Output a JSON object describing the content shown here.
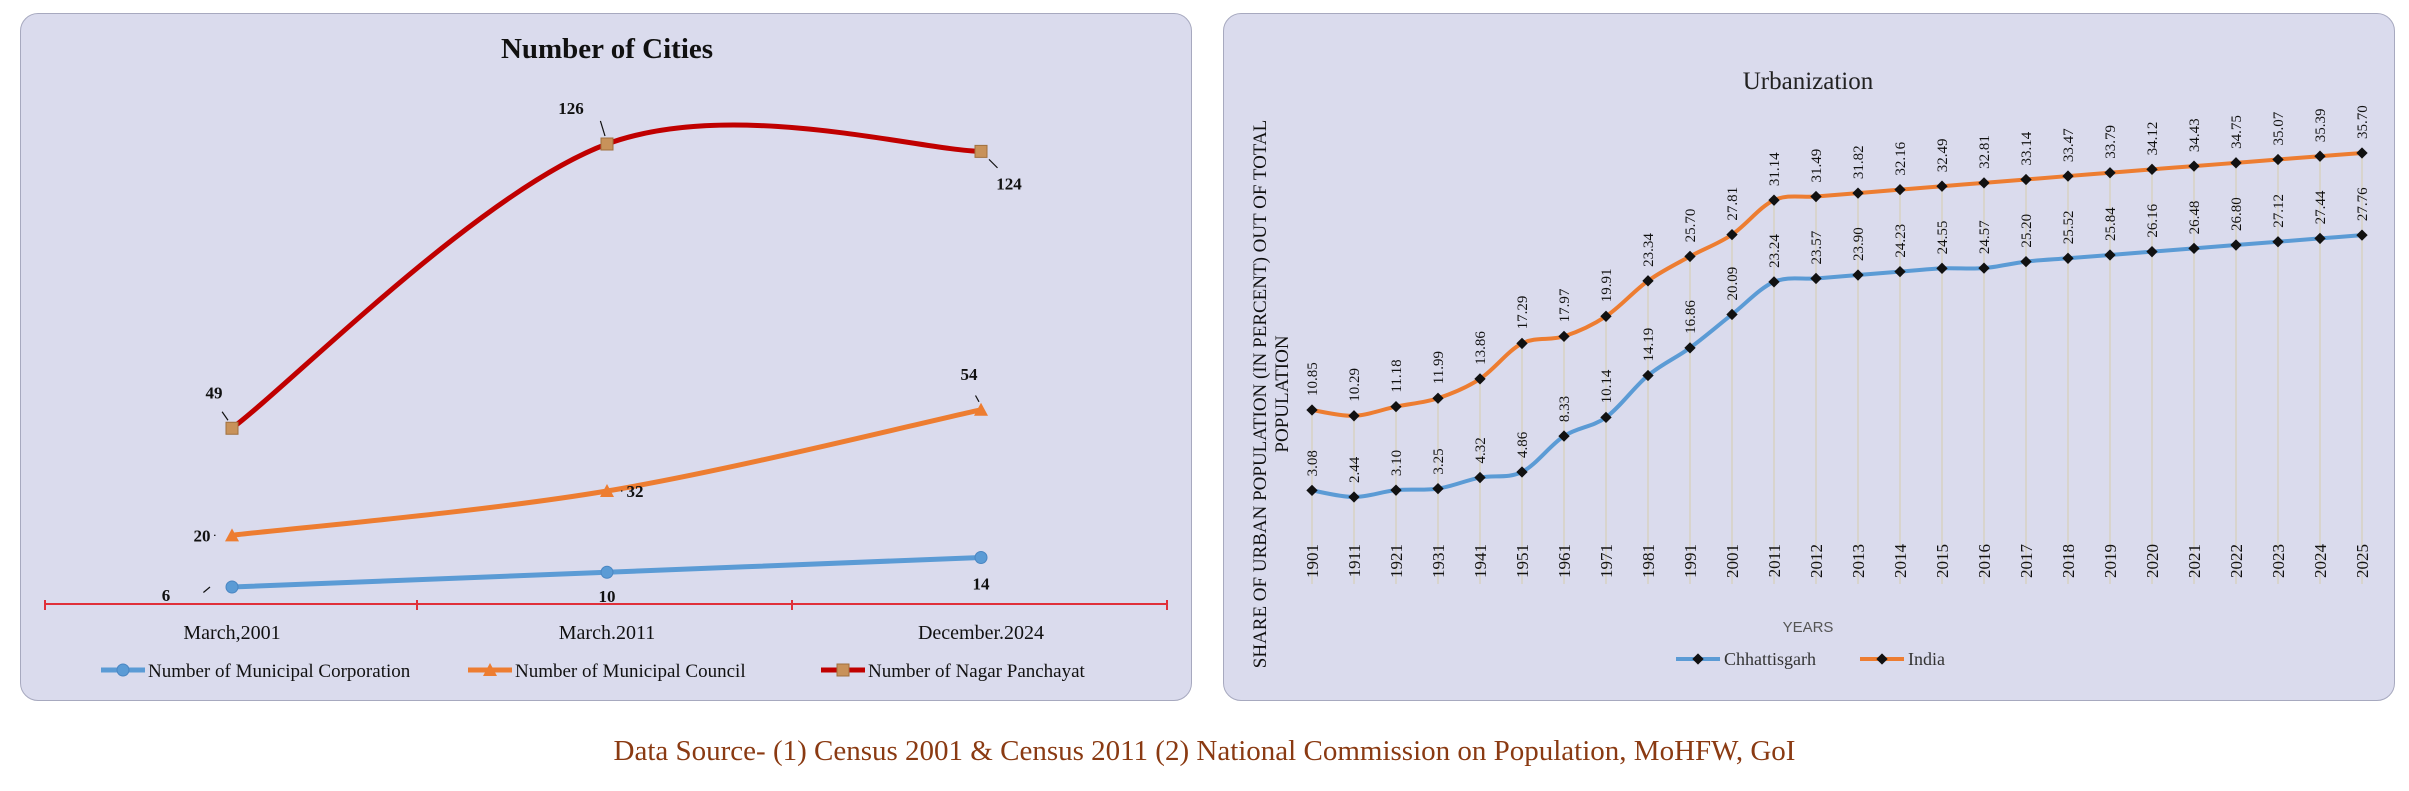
{
  "chart_data": [
    {
      "type": "line",
      "title": "Number of Cities",
      "categories": [
        "March,2001",
        "March.2011",
        "December.2024"
      ],
      "series": [
        {
          "name": "Number of Municipal Corporation",
          "values": [
            6,
            10,
            14
          ],
          "color": "#5b9bd5",
          "marker": "circle"
        },
        {
          "name": "Number of Municipal Council",
          "values": [
            20,
            32,
            54
          ],
          "color": "#ed7d31",
          "marker": "triangle"
        },
        {
          "name": "Number of Nagar Panchayat",
          "values": [
            49,
            126,
            124
          ],
          "color": "#c00000",
          "marker": "square"
        }
      ],
      "ylim": [
        0,
        140
      ],
      "smooth": true,
      "legend": "bottom",
      "grid": false
    },
    {
      "type": "line",
      "title": "Urbanization",
      "xlabel": "YEARS",
      "ylabel": "SHARE OF URBAN POPULATION (IN PERCENT) OUT OF TOTAL POPULATION",
      "categories": [
        "1901",
        "1911",
        "1921",
        "1931",
        "1941",
        "1951",
        "1961",
        "1971",
        "1981",
        "1991",
        "2001",
        "2011",
        "2012",
        "2013",
        "2014",
        "2015",
        "2016",
        "2017",
        "2018",
        "2019",
        "2020",
        "2021",
        "2022",
        "2023",
        "2024",
        "2025"
      ],
      "series": [
        {
          "name": "Chhattisgarh",
          "values": [
            "3.08",
            "2.44",
            "3.10",
            "3.25",
            "4.32",
            "4.86",
            "8.33",
            "10.14",
            "14.19",
            "16.86",
            "20.09",
            "23.24",
            "23.57",
            "23.90",
            "24.23",
            "24.55",
            "24.57",
            "25.20",
            "25.52",
            "25.84",
            "26.16",
            "26.48",
            "26.80",
            "27.12",
            "27.44",
            "27.76"
          ],
          "color": "#5b9bd5"
        },
        {
          "name": "India",
          "values": [
            "10.85",
            "10.29",
            "11.18",
            "11.99",
            "13.86",
            "17.29",
            "17.97",
            "19.91",
            "23.34",
            "25.70",
            "27.81",
            "31.14",
            "31.49",
            "31.82",
            "32.16",
            "32.49",
            "32.81",
            "33.14",
            "33.47",
            "33.79",
            "34.12",
            "34.43",
            "34.75",
            "35.07",
            "35.39",
            "35.70"
          ],
          "color": "#ed7d31"
        }
      ],
      "ylim": [
        0,
        40
      ],
      "smooth": true,
      "legend": "bottom",
      "grid": false
    }
  ],
  "source": "Data Source- (1) Census 2001 & Census 2011 (2) National Commission on Population, MoHFW, GoI"
}
